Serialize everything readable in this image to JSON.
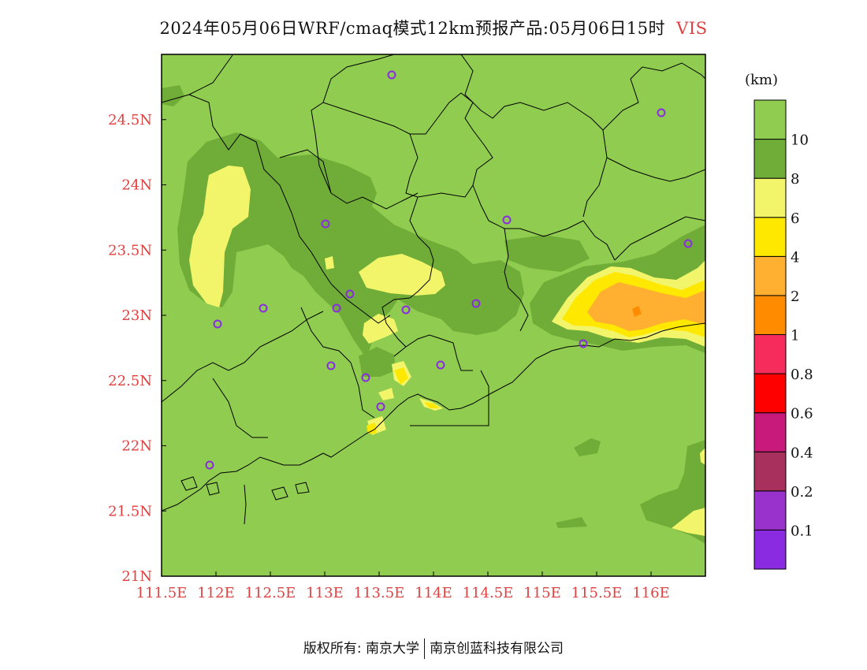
{
  "title": {
    "main": "2024年05月06日WRF/cmaq模式12km预报产品:05月06日15时",
    "variable": "VIS"
  },
  "colorbar": {
    "unit": "(km)",
    "colors": [
      "#8a2be2",
      "#9932cc",
      "#a8305c",
      "#c81a7a",
      "#ff0000",
      "#f52c5c",
      "#ff8c00",
      "#ffb030",
      "#ffe800",
      "#f2f56a",
      "#70ad38",
      "#8fcc4f"
    ],
    "labels": [
      "0.1",
      "0.2",
      "0.4",
      "0.6",
      "0.8",
      "1",
      "2",
      "4",
      "6",
      "8",
      "10"
    ]
  },
  "axes": {
    "x_ticks": [
      "111.5E",
      "112E",
      "112.5E",
      "113E",
      "113.5E",
      "114E",
      "114.5E",
      "115E",
      "115.5E",
      "116E"
    ],
    "y_ticks": [
      "21N",
      "21.5N",
      "22N",
      "22.5N",
      "23N",
      "23.5N",
      "24N",
      "24.5N"
    ]
  },
  "footer": {
    "left": "版权所有: 南京大学",
    "right": "南京创蓝科技有限公司"
  }
}
